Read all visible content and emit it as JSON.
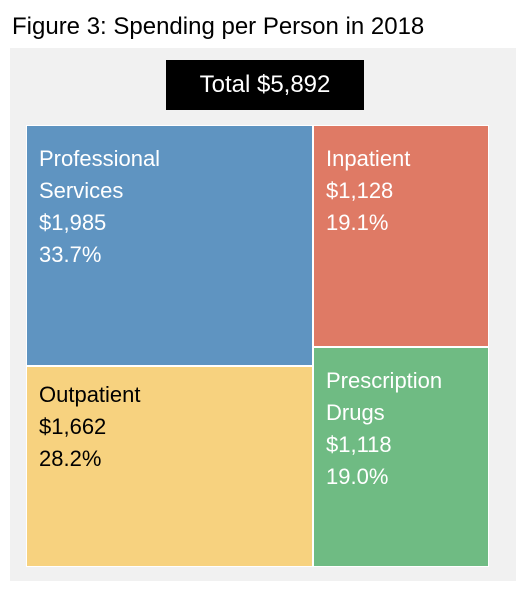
{
  "title": "Figure 3: Spending per Person in 2018",
  "total_label": "Total $5,892",
  "colors": {
    "professional_services": "#5f94c1",
    "inpatient": "#df7a65",
    "outpatient": "#f7d27f",
    "prescription_drugs": "#6fbb83"
  },
  "chart_data": {
    "type": "treemap",
    "title": "Figure 3: Spending per Person in 2018",
    "total": 5892,
    "total_label": "Total $5,892",
    "items": [
      {
        "key": "professional_services",
        "name": "Professional\nServices",
        "amount": 1985,
        "amount_label": "$1,985",
        "share": 33.7,
        "share_label": "33.7%",
        "color": "#5f94c1"
      },
      {
        "key": "outpatient",
        "name": "Outpatient",
        "amount": 1662,
        "amount_label": "$1,662",
        "share": 28.2,
        "share_label": "28.2%",
        "color": "#f7d27f"
      },
      {
        "key": "inpatient",
        "name": "Inpatient",
        "amount": 1128,
        "amount_label": "$1,128",
        "share": 19.1,
        "share_label": "19.1%",
        "color": "#df7a65"
      },
      {
        "key": "prescription_drugs",
        "name": "Prescription\nDrugs",
        "amount": 1118,
        "amount_label": "$1,118",
        "share": 19.0,
        "share_label": "19.0%",
        "color": "#6fbb83"
      }
    ]
  }
}
